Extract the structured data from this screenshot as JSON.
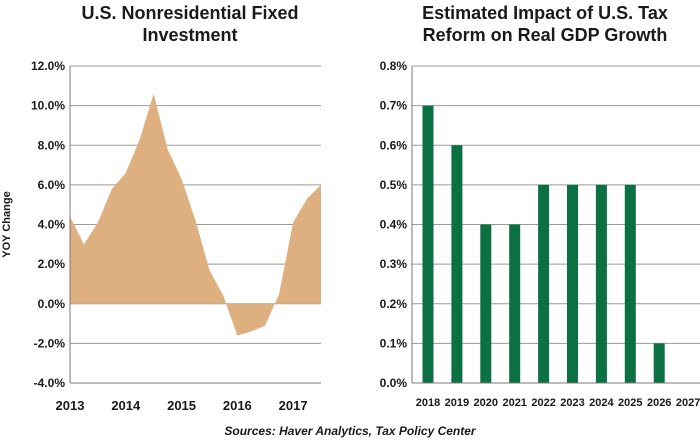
{
  "chart_data": [
    {
      "type": "area",
      "title": "U.S. Nonresidential Fixed\nInvestment",
      "xlabel": "",
      "ylabel": "YOY Change",
      "ylim": [
        -4.0,
        12.0
      ],
      "yticks": [
        "12.0%",
        "10.0%",
        "8.0%",
        "6.0%",
        "4.0%",
        "2.0%",
        "0.0%",
        "-2.0%",
        "-4.0%"
      ],
      "xticks": [
        "2013",
        "2014",
        "2015",
        "2016",
        "2017"
      ],
      "grid": true,
      "color": "#deaf7f",
      "x": [
        2013.0,
        2013.25,
        2013.5,
        2013.75,
        2014.0,
        2014.25,
        2014.5,
        2014.75,
        2015.0,
        2015.25,
        2015.5,
        2015.75,
        2016.0,
        2016.25,
        2016.5,
        2016.75,
        2017.0,
        2017.25,
        2017.5
      ],
      "values": [
        4.4,
        3.0,
        4.1,
        5.8,
        6.6,
        8.3,
        10.6,
        7.8,
        6.3,
        4.2,
        1.7,
        0.4,
        -1.6,
        -1.4,
        -1.1,
        0.5,
        4.1,
        5.3,
        6.0
      ]
    },
    {
      "type": "bar",
      "title": "Estimated Impact of U.S. Tax\nReform on Real GDP Growth",
      "xlabel": "",
      "ylabel": "",
      "ylim": [
        0,
        0.8
      ],
      "yticks": [
        "0.8%",
        "0.7%",
        "0.6%",
        "0.5%",
        "0.4%",
        "0.3%",
        "0.2%",
        "0.1%",
        "0.0%"
      ],
      "grid": true,
      "color": "#0b7143",
      "categories": [
        "2018",
        "2019",
        "2020",
        "2021",
        "2022",
        "2023",
        "2024",
        "2025",
        "2026",
        "2027"
      ],
      "values": [
        0.7,
        0.6,
        0.4,
        0.4,
        0.5,
        0.5,
        0.5,
        0.5,
        0.1,
        0.0
      ]
    }
  ],
  "source": "Sources: Haver Analytics, Tax Policy Center"
}
